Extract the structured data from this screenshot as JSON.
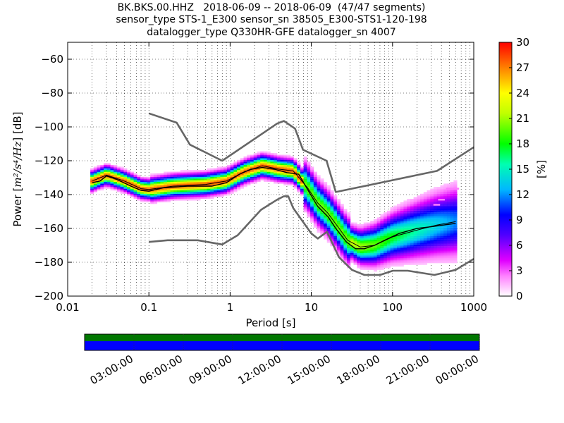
{
  "header": {
    "title_line1": "BK.BKS.00.HHZ   2018-06-09 -- 2018-06-09  (47/47 segments)",
    "title_line2": "sensor_type STS-1_E300 sensor_sn 38505_E300-STS1-120-198",
    "title_line3": "datalogger_type Q330HR-GFE datalogger_sn 4007"
  },
  "chart_data": {
    "type": "heatmap",
    "xlabel": "Period [s]",
    "ylabel_prefix": "Power [",
    "ylabel_math": "m²/s⁴/Hz",
    "ylabel_suffix": "] [dB]",
    "xscale": "log",
    "xlim": [
      0.01,
      1000
    ],
    "ylim": [
      -200,
      -50
    ],
    "x_ticks": [
      {
        "value": 0.01,
        "label": "0.01"
      },
      {
        "value": 0.1,
        "label": "0.1"
      },
      {
        "value": 1,
        "label": "1"
      },
      {
        "value": 10,
        "label": "10"
      },
      {
        "value": 100,
        "label": "100"
      },
      {
        "value": 1000,
        "label": "1000"
      }
    ],
    "y_ticks": [
      {
        "value": -60,
        "label": "−60"
      },
      {
        "value": -80,
        "label": "−80"
      },
      {
        "value": -100,
        "label": "−100"
      },
      {
        "value": -120,
        "label": "−120"
      },
      {
        "value": -140,
        "label": "−140"
      },
      {
        "value": -160,
        "label": "−160"
      },
      {
        "value": -180,
        "label": "−180"
      },
      {
        "value": -200,
        "label": "−200"
      }
    ],
    "grid": "dotted",
    "colorbar": {
      "label": "[%]",
      "range": [
        0,
        30
      ],
      "ticks": [
        {
          "value": 0,
          "label": "0"
        },
        {
          "value": 3,
          "label": "3"
        },
        {
          "value": 6,
          "label": "6"
        },
        {
          "value": 9,
          "label": "9"
        },
        {
          "value": 12,
          "label": "12"
        },
        {
          "value": 15,
          "label": "15"
        },
        {
          "value": 18,
          "label": "18"
        },
        {
          "value": 21,
          "label": "21"
        },
        {
          "value": 24,
          "label": "24"
        },
        {
          "value": 27,
          "label": "27"
        },
        {
          "value": 30,
          "label": "30"
        }
      ],
      "colors": [
        "#ffffff",
        "#ff00ff",
        "#7a00ff",
        "#0000ff",
        "#00c0ff",
        "#00ff60",
        "#a0ff00",
        "#ffff00",
        "#ff9000",
        "#ff0000"
      ]
    },
    "nhnm": [
      [
        0.1,
        -168
      ],
      [
        0.17,
        -167
      ],
      [
        0.4,
        -167
      ],
      [
        0.8,
        -169.5
      ],
      [
        1.24,
        -164
      ],
      [
        2.4,
        -149
      ],
      [
        3.8,
        -143
      ],
      [
        4.6,
        -141
      ],
      [
        5.2,
        -141
      ],
      [
        6.0,
        -148
      ],
      [
        10.0,
        -163
      ],
      [
        12.0,
        -166
      ],
      [
        15.6,
        -162
      ],
      [
        21.9,
        -177
      ],
      [
        31.6,
        -184.5
      ],
      [
        45,
        -187.5
      ],
      [
        70,
        -187.5
      ],
      [
        101,
        -185
      ],
      [
        154,
        -185
      ],
      [
        328,
        -187.5
      ],
      [
        600,
        -184.5
      ],
      [
        1000,
        -178
      ]
    ],
    "nlnm": [
      [
        0.1,
        -92
      ],
      [
        0.22,
        -97.5
      ],
      [
        0.32,
        -110.5
      ],
      [
        0.8,
        -120
      ],
      [
        3.8,
        -98
      ],
      [
        4.6,
        -96.5
      ],
      [
        6.3,
        -101
      ],
      [
        7.9,
        -113.5
      ],
      [
        15.4,
        -120
      ],
      [
        20,
        -138.5
      ],
      [
        354,
        -126
      ],
      [
        1000,
        -112
      ]
    ],
    "mean_curve": [
      [
        0.02,
        -133
      ],
      [
        0.025,
        -132
      ],
      [
        0.03,
        -129
      ],
      [
        0.04,
        -131
      ],
      [
        0.06,
        -135
      ],
      [
        0.08,
        -137.5
      ],
      [
        0.1,
        -138
      ],
      [
        0.15,
        -136
      ],
      [
        0.3,
        -135
      ],
      [
        0.6,
        -135
      ],
      [
        0.9,
        -133
      ],
      [
        1.3,
        -128
      ],
      [
        1.8,
        -125
      ],
      [
        2.5,
        -124
      ],
      [
        3.5,
        -125
      ],
      [
        5,
        -127
      ],
      [
        7,
        -128
      ],
      [
        9,
        -137
      ],
      [
        12,
        -147
      ],
      [
        16,
        -153
      ],
      [
        20,
        -160
      ],
      [
        27,
        -168
      ],
      [
        35,
        -172
      ],
      [
        45,
        -172
      ],
      [
        60,
        -170
      ],
      [
        80,
        -167
      ],
      [
        120,
        -163
      ],
      [
        200,
        -160
      ],
      [
        300,
        -159
      ],
      [
        600,
        -157
      ]
    ],
    "mode_curve": [
      [
        0.02,
        -132
      ],
      [
        0.03,
        -128.5
      ],
      [
        0.05,
        -132
      ],
      [
        0.08,
        -136.5
      ],
      [
        0.1,
        -137
      ],
      [
        0.2,
        -135
      ],
      [
        0.5,
        -134
      ],
      [
        0.9,
        -132
      ],
      [
        1.5,
        -126.5
      ],
      [
        2.5,
        -123
      ],
      [
        4,
        -125
      ],
      [
        6,
        -126
      ],
      [
        9,
        -136
      ],
      [
        12,
        -145
      ],
      [
        16,
        -151
      ],
      [
        22,
        -160
      ],
      [
        28,
        -167
      ],
      [
        40,
        -171
      ],
      [
        60,
        -170
      ],
      [
        100,
        -165
      ],
      [
        200,
        -161
      ],
      [
        350,
        -158
      ],
      [
        600,
        -156
      ]
    ],
    "outlier_bins": [
      {
        "period": 500,
        "db": -136.5
      },
      {
        "period": 600,
        "db": -136.5
      },
      {
        "period": 400,
        "db": -143
      },
      {
        "period": 350,
        "db": -146
      }
    ]
  },
  "time_axis": {
    "ticks": [
      "03:00:00",
      "06:00:00",
      "09:00:00",
      "12:00:00",
      "15:00:00",
      "18:00:00",
      "21:00:00",
      "00:00:00"
    ],
    "bar_colors": {
      "coverage": "#007700",
      "data": "#0000ff"
    }
  },
  "colors": {
    "noise_model": "#666666",
    "mean": "#000000",
    "mode": "#000000"
  }
}
